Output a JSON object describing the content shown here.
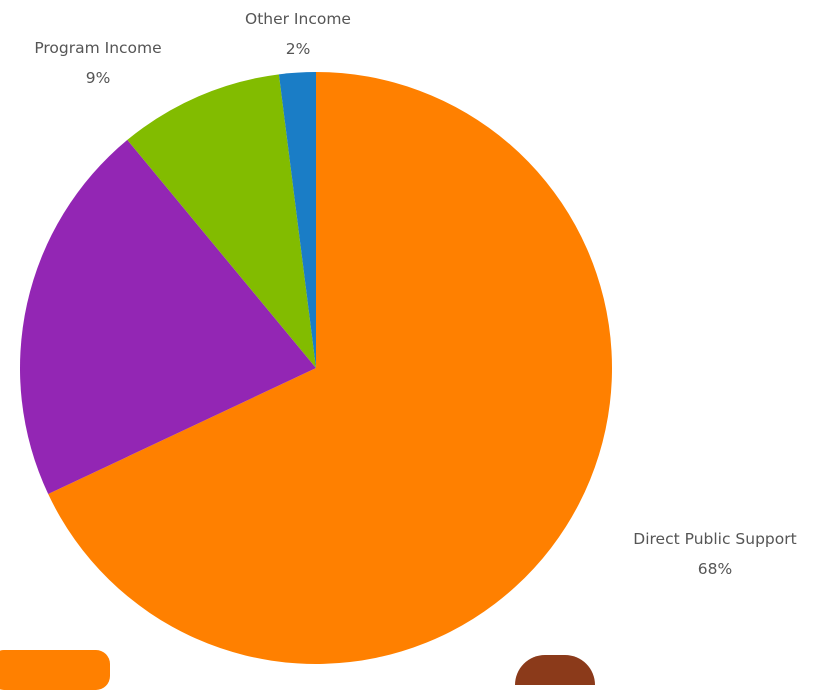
{
  "chart_data": {
    "type": "pie",
    "slices": [
      {
        "label": "Direct Public Support",
        "value_label": "68%",
        "value": 68,
        "color": "#ff8000"
      },
      {
        "label": "",
        "value_label": "",
        "value": 21,
        "color": "#9326b4"
      },
      {
        "label": "Program Income",
        "value_label": "9%",
        "value": 9,
        "color": "#82bc00"
      },
      {
        "label": "Other Income",
        "value_label": "2%",
        "value": 2,
        "color": "#1a7dc6"
      }
    ]
  }
}
